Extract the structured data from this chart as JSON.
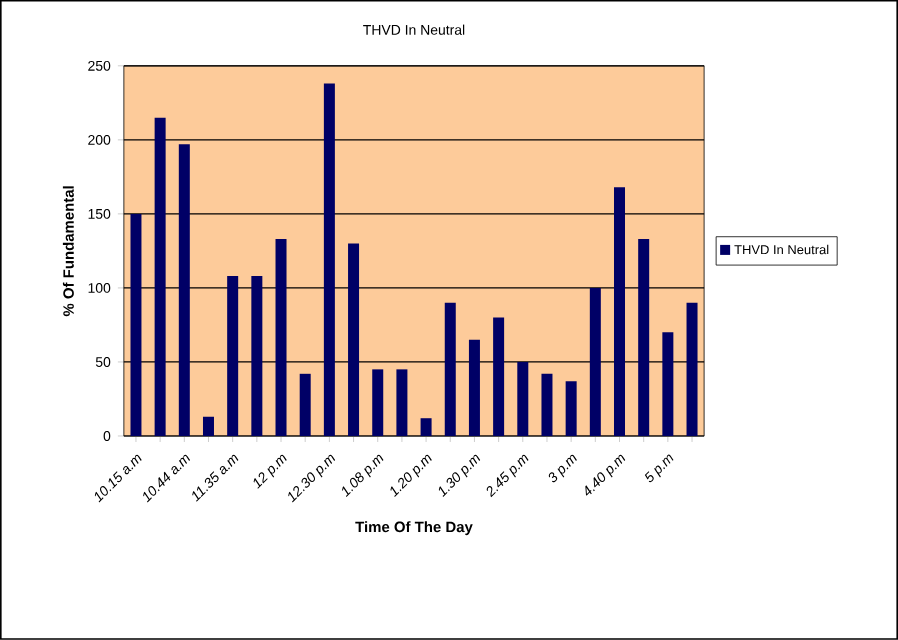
{
  "chart_data": {
    "type": "bar",
    "title": "THVD In Neutral",
    "xlabel": "Time Of The Day",
    "ylabel": "% Of Fundamental",
    "categories": [
      "10.15 a.m",
      null,
      "10.44 a.m",
      null,
      "11.35 a.m",
      null,
      "12 p.m",
      null,
      "12.30 p.m",
      null,
      "1.08 p.m",
      null,
      "1.20 p.m",
      null,
      "1.30 p.m",
      null,
      "2.45 p.m",
      null,
      "3 p.m",
      null,
      "4.40 p.m",
      null,
      "5 p.m",
      null
    ],
    "series": [
      {
        "name": "THVD In Neutral",
        "color": "#000066",
        "values": [
          150,
          215,
          197,
          13,
          108,
          108,
          133,
          42,
          238,
          130,
          45,
          45,
          12,
          90,
          65,
          80,
          50,
          42,
          37,
          100,
          168,
          133,
          70,
          90
        ]
      }
    ],
    "ylim": [
      0,
      250
    ],
    "yticks": [
      0,
      50,
      100,
      150,
      200,
      250
    ],
    "grid": "y",
    "legend": "right"
  }
}
